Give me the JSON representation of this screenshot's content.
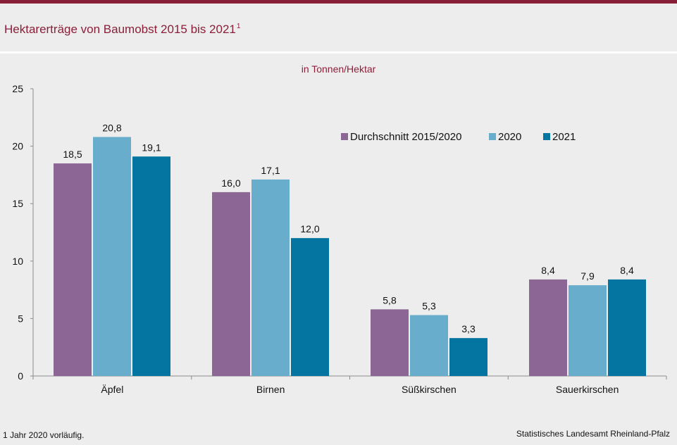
{
  "title": "Hektarerträge von Baumobst 2015 bis 2021",
  "title_sup": "1",
  "footnote": "1 Jahr 2020 vorläufig.",
  "source": "Statistisches Landesamt Rheinland-Pfalz",
  "colors": {
    "accent": "#8a1f3a",
    "series": [
      "#8c6694",
      "#68aecc",
      "#0474a0"
    ]
  },
  "chart_data": {
    "type": "bar",
    "subtitle": "in Tonnen/Hektar",
    "categories": [
      "Äpfel",
      "Birnen",
      "Süßkirschen",
      "Sauerkirschen"
    ],
    "series": [
      {
        "name": "Durchschnitt 2015/2020",
        "values": [
          18.5,
          16.0,
          5.8,
          8.4
        ],
        "labels": [
          "18,5",
          "16,0",
          "5,8",
          "8,4"
        ]
      },
      {
        "name": "2020",
        "values": [
          20.8,
          17.1,
          5.3,
          7.9
        ],
        "labels": [
          "20,8",
          "17,1",
          "5,3",
          "7,9"
        ]
      },
      {
        "name": "2021",
        "values": [
          19.1,
          12.0,
          3.3,
          8.4
        ],
        "labels": [
          "19,1",
          "12,0",
          "3,3",
          "8,4"
        ]
      }
    ],
    "yticks": [
      "0",
      "5",
      "10",
      "15",
      "20",
      "25"
    ],
    "ylim": [
      0,
      25
    ],
    "grid": false,
    "legend": "top-right"
  }
}
